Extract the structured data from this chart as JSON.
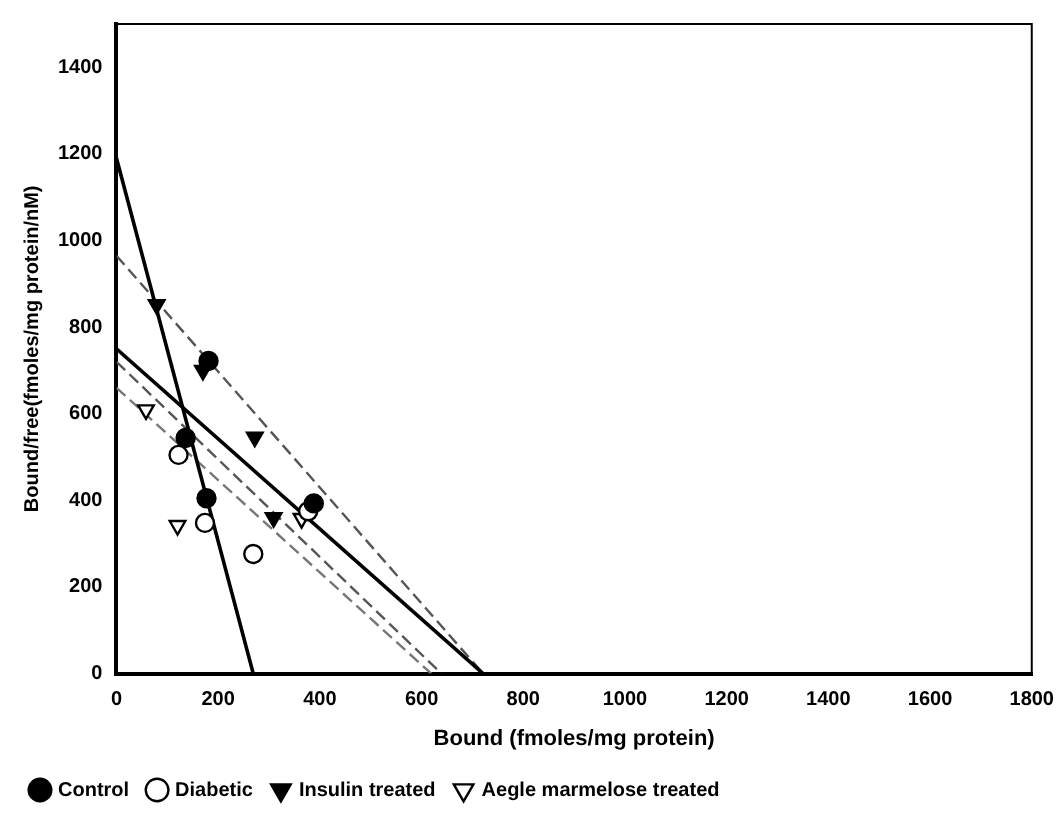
{
  "chart_data": {
    "type": "scatter",
    "xlabel": "Bound (fmoles/mg protein)",
    "ylabel": "Bound/free(fmoles/mg protein/nM)",
    "xlim": [
      0,
      1800
    ],
    "xticks": [
      0,
      200,
      400,
      600,
      800,
      1000,
      1200,
      1400,
      1600,
      1800
    ],
    "ylim": [
      0,
      1500
    ],
    "yticks": [
      0,
      200,
      400,
      600,
      800,
      1000,
      1200,
      1400
    ],
    "grid": false,
    "legend": "bottom left",
    "series": [
      {
        "name": "Control",
        "color": "#000000",
        "marker": "circle",
        "x": [
          181,
          136,
          177,
          388
        ],
        "values": [
          722,
          544,
          405,
          393
        ]
      },
      {
        "name": "Diabetic",
        "color": "#ffffff",
        "marker": "circle",
        "x": [
          122,
          174,
          269,
          377
        ],
        "values": [
          505,
          348,
          276,
          375
        ]
      },
      {
        "name": "Insulin treated",
        "color": "#000000",
        "marker": "triangle",
        "x": [
          79,
          170,
          272,
          309
        ],
        "values": [
          852,
          700,
          546,
          360
        ]
      },
      {
        "name": "Aegle marmelose treated",
        "color": "#ffffff",
        "marker": "triangle",
        "x": [
          58,
          120,
          364
        ],
        "values": [
          609,
          342,
          358
        ]
      },
      {
        "type": "line",
        "color": "#000000",
        "line_style": "solid",
        "marker": "none",
        "x": [
          0,
          269
        ],
        "values": [
          1190,
          0
        ]
      },
      {
        "type": "line",
        "color": "#000000",
        "line_style": "solid",
        "marker": "none",
        "x": [
          0,
          721
        ],
        "values": [
          750,
          0
        ]
      },
      {
        "type": "line",
        "color": "#555555",
        "line_style": "dashed",
        "marker": "none",
        "x": [
          0,
          721
        ],
        "values": [
          965,
          0
        ]
      },
      {
        "type": "line",
        "color": "#555555",
        "line_style": "dashed",
        "marker": "none",
        "x": [
          0,
          639
        ],
        "values": [
          720,
          0
        ]
      },
      {
        "type": "line",
        "color": "#777777",
        "line_style": "dashed",
        "marker": "none",
        "x": [
          0,
          619
        ],
        "values": [
          660,
          0
        ]
      }
    ]
  }
}
